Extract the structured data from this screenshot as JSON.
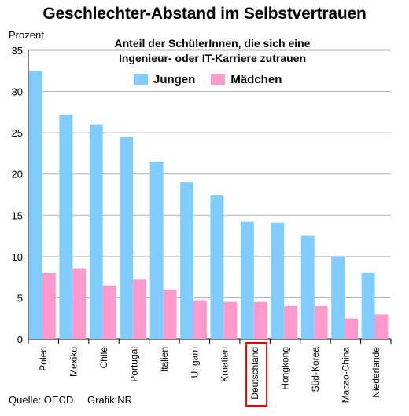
{
  "title": "Geschlechter-Abstand im Selbstvertrauen",
  "subtitle_line1": "Anteil der SchülerInnen, die sich eine",
  "subtitle_line2": "Ingenieur- oder IT-Karriere zutrauen",
  "footer": {
    "source": "Quelle: OECD",
    "credit": "Grafik:NR"
  },
  "colors": {
    "jungen": "#80ccff",
    "maedchen": "#ff99cc",
    "highlight": "#e60000",
    "grid": "#b0b0b0"
  },
  "chart_data": {
    "type": "bar",
    "ylabel": "Prozent",
    "xlabel": "",
    "ylim": [
      0,
      35
    ],
    "yticks": [
      0,
      5,
      10,
      15,
      20,
      25,
      30,
      35
    ],
    "grid": true,
    "legend_position": "top-center",
    "categories": [
      "Polen",
      "Mexiko",
      "Chile",
      "Portugal",
      "Italien",
      "Ungarn",
      "Kroatien",
      "Deutschland",
      "Hongkong",
      "Süd-Korea",
      "Macao-China",
      "Niederlande"
    ],
    "highlighted_category": "Deutschland",
    "series": [
      {
        "name": "Jungen",
        "values": [
          32.5,
          27.2,
          26.0,
          24.5,
          21.5,
          19.0,
          17.4,
          14.2,
          14.1,
          12.5,
          10.0,
          8.0
        ]
      },
      {
        "name": "Mädchen",
        "values": [
          8.0,
          8.5,
          6.5,
          7.2,
          6.0,
          4.7,
          4.5,
          4.5,
          4.0,
          4.0,
          2.5,
          3.0
        ]
      }
    ]
  }
}
